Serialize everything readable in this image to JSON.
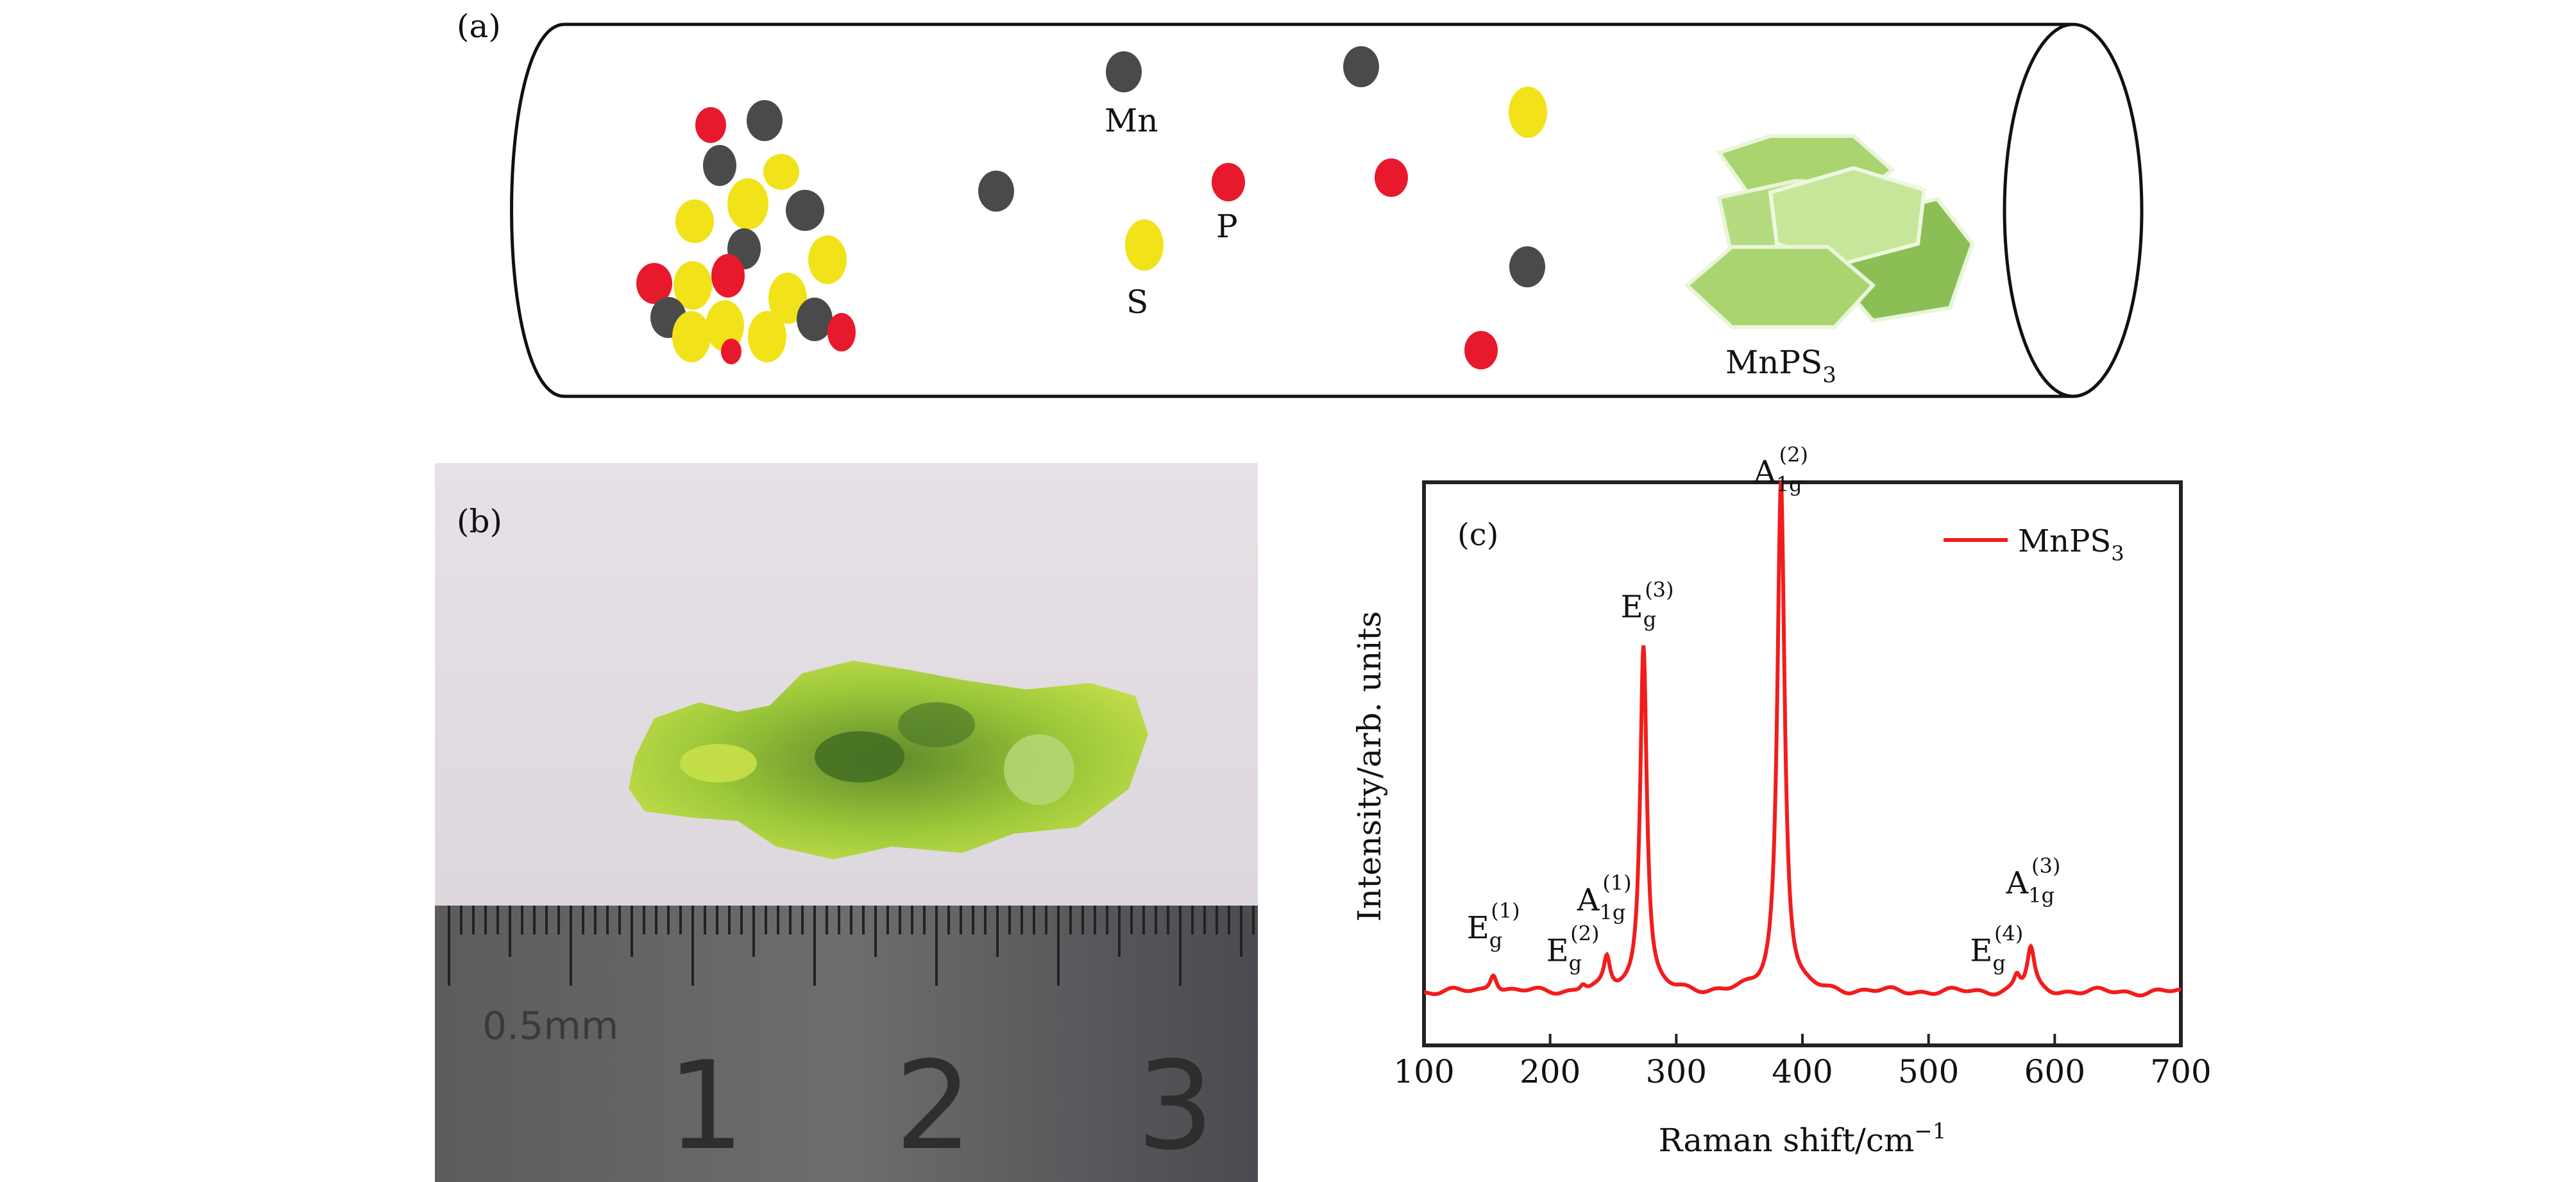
{
  "panel_a": {
    "label": "(a)",
    "atom_labels": {
      "mn": "Mn",
      "p": "P",
      "s": "S"
    },
    "product_label": {
      "base": "MnPS",
      "sub": "3"
    },
    "colors": {
      "mn": "#4a4a4a",
      "p": "#e8192c",
      "s": "#f2e21a",
      "crystal": "#a9d46f",
      "crystal_dark": "#8bbf55"
    }
  },
  "panel_b": {
    "label": "(b)",
    "ruler_unit": "0.5mm",
    "ruler_numbers": [
      "1",
      "2",
      "3"
    ]
  },
  "panel_c": {
    "label": "(c)",
    "chart_data": {
      "type": "line",
      "xlabel": "Raman shift/cm",
      "xlabel_sup": "−1",
      "ylabel": "Intensity/arb. units",
      "xlim": [
        100,
        700
      ],
      "ylim": [
        0,
        1.0
      ],
      "xticks": [
        "100",
        "200",
        "300",
        "400",
        "500",
        "600",
        "700"
      ],
      "series": [
        {
          "name": "MnPS3",
          "legend_base": "MnPS",
          "legend_sub": "3",
          "color": "#f21c1c",
          "baseline": 0.095,
          "peaks": [
            {
              "x": 155,
              "height": 0.035,
              "width": 3.5
            },
            {
              "x": 226,
              "height": 0.012,
              "width": 3
            },
            {
              "x": 245,
              "height": 0.055,
              "width": 3
            },
            {
              "x": 274,
              "height": 0.62,
              "width": 3.2
            },
            {
              "x": 383,
              "height": 0.91,
              "width": 3.5
            },
            {
              "x": 570,
              "height": 0.025,
              "width": 3
            },
            {
              "x": 581,
              "height": 0.075,
              "width": 3.5
            }
          ]
        }
      ],
      "annotations": [
        {
          "base": "E",
          "sub": "g",
          "sup": "(1)",
          "x": 155,
          "y": 0.19
        },
        {
          "base": "E",
          "sub": "g",
          "sup": "(2)",
          "x": 218,
          "y": 0.15
        },
        {
          "base": "A",
          "sub": "1g",
          "sup": "(1)",
          "x": 243,
          "y": 0.24
        },
        {
          "base": "E",
          "sub": "g",
          "sup": "(3)",
          "x": 277,
          "y": 0.76
        },
        {
          "base": "A",
          "sub": "1g",
          "sup": "(2)",
          "x": 383,
          "y": 1.0
        },
        {
          "base": "E",
          "sub": "g",
          "sup": "(4)",
          "x": 554,
          "y": 0.15
        },
        {
          "base": "A",
          "sub": "1g",
          "sup": "(3)",
          "x": 583,
          "y": 0.27
        }
      ],
      "legend": "top-right",
      "grid": false
    }
  }
}
